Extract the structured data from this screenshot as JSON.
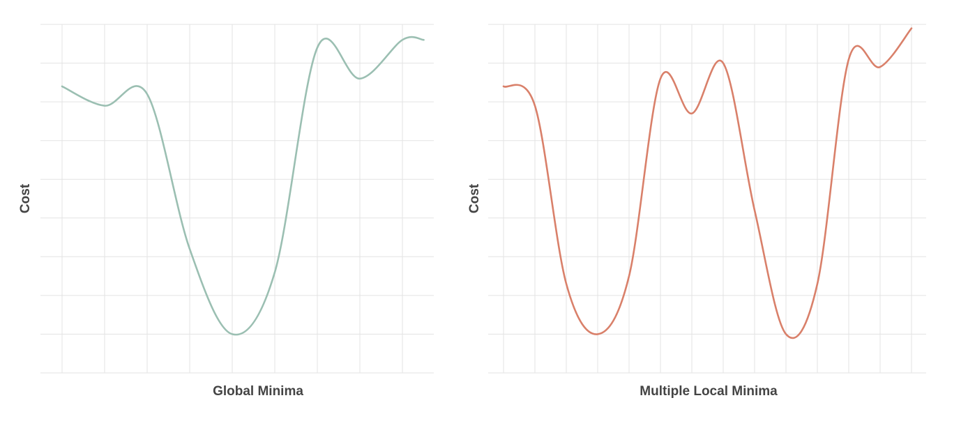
{
  "chart_data": [
    {
      "type": "line",
      "title": "",
      "xlabel": "Global Minima",
      "ylabel": "Cost",
      "xlim": [
        0,
        8.5
      ],
      "ylim": [
        0,
        9
      ],
      "grid": true,
      "x_grid_count": 9,
      "y_grid_count": 10,
      "series": [
        {
          "color": "#9bbfb2",
          "x": [
            0,
            1,
            2,
            3,
            4,
            5,
            6,
            7,
            8,
            8.5
          ],
          "y": [
            7.4,
            6.9,
            7.2,
            3.2,
            1.0,
            2.6,
            8.4,
            7.6,
            8.6,
            8.6
          ]
        }
      ]
    },
    {
      "type": "line",
      "title": "",
      "xlabel": "Multiple Local Minima",
      "ylabel": "Cost",
      "xlim": [
        0,
        13.3
      ],
      "ylim": [
        0,
        9
      ],
      "grid": true,
      "x_grid_count": 14,
      "y_grid_count": 10,
      "series": [
        {
          "color": "#d9806a",
          "x": [
            0,
            1,
            2,
            3,
            4,
            5,
            6,
            7,
            8,
            9,
            10,
            11,
            12,
            13
          ],
          "y": [
            7.4,
            6.9,
            2.3,
            1.0,
            2.5,
            7.6,
            6.7,
            8.0,
            4.2,
            1.0,
            2.3,
            8.1,
            7.9,
            8.9
          ]
        }
      ]
    }
  ]
}
